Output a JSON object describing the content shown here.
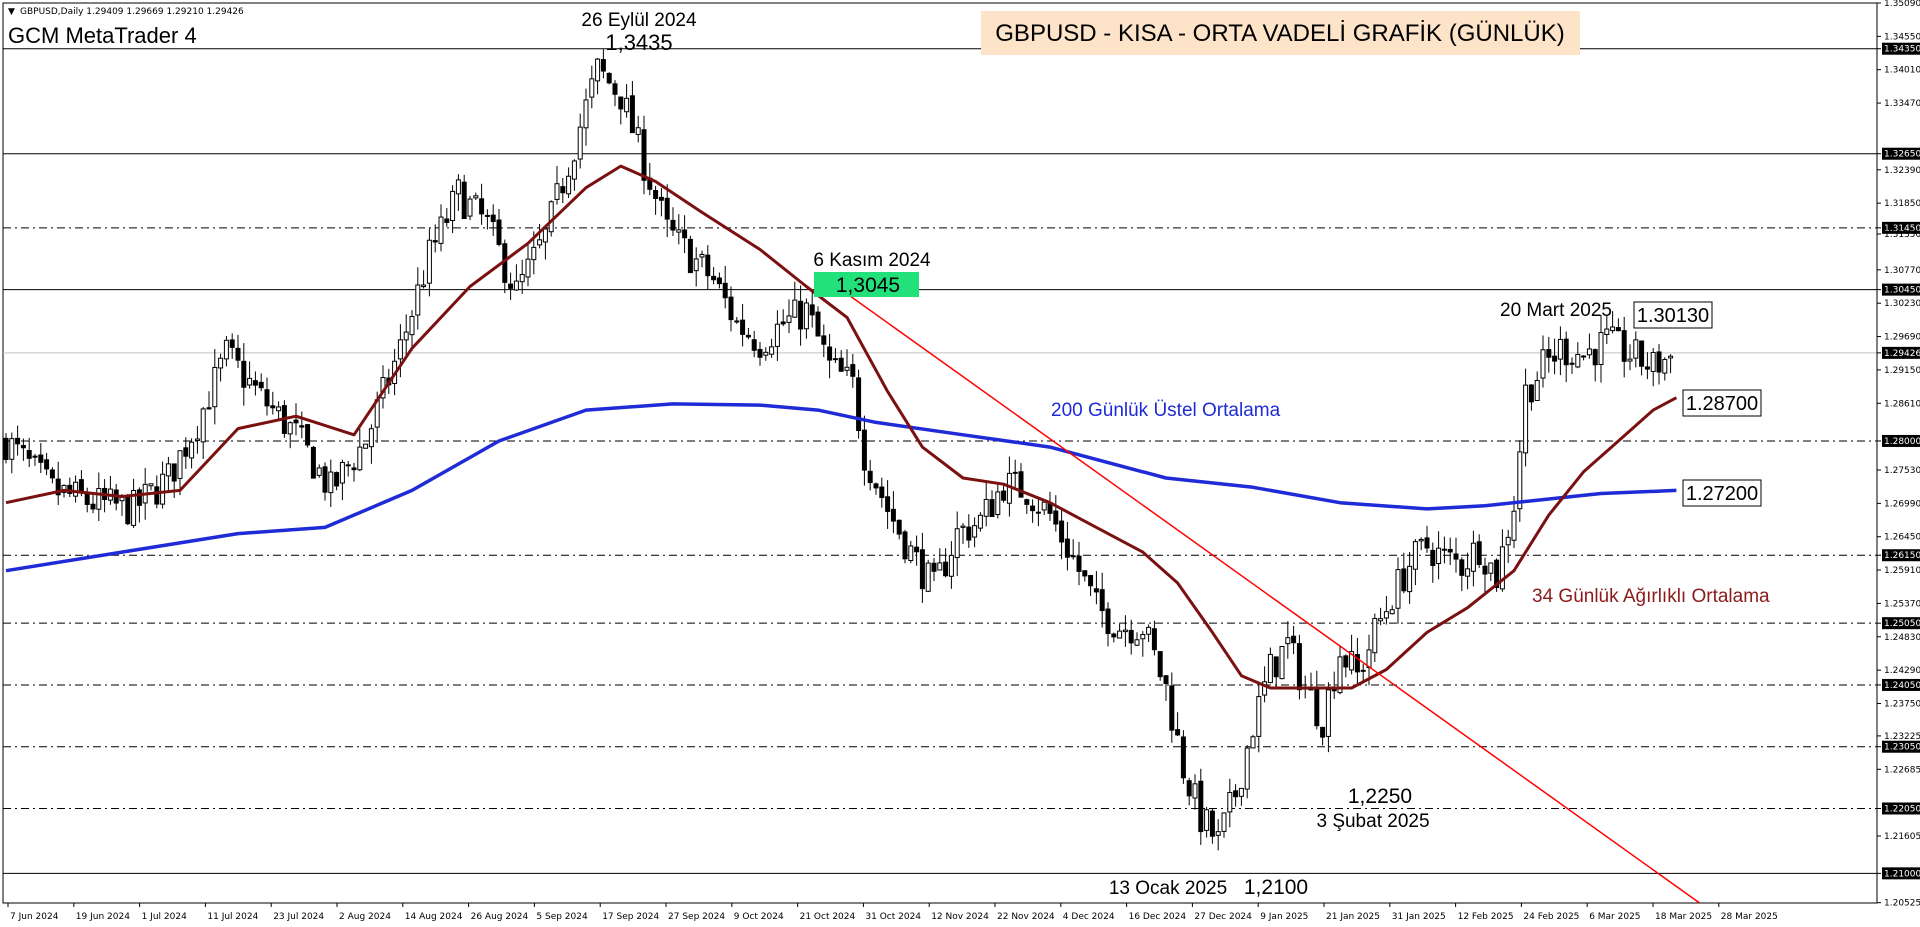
{
  "window": {
    "symbol_line": "GBPUSD,Daily  1.29409 1.29669 1.29210 1.29426",
    "platform_label": "GCM MetaTrader 4",
    "title_banner": "GBPUSD - KISA - ORTA VADELİ GRAFİK (GÜNLÜK)"
  },
  "colors": {
    "candle": "#000000",
    "ema200": "#1f2bd6",
    "wma34": "#7b1010",
    "trendline": "#ff0000",
    "highlight": "#22e07a",
    "banner": "#fde3c8"
  },
  "annotations": {
    "peak_date": "26 Eylül 2024",
    "peak_value": "1,3435",
    "nov_date": "6 Kasım 2024",
    "nov_value": "1,3045",
    "mar_date": "20 Mart 2025",
    "mar_value": "1.30130",
    "wma_value": "1.28700",
    "ema_value": "1.27200",
    "ema_label": "200 Günlük Üstel Ortalama",
    "wma_label": "34 Günlük Ağırlıklı Ortalama",
    "feb_value": "1,2250",
    "feb_date": "3 Şubat 2025",
    "jan_date": "13 Ocak 2025",
    "jan_value": "1,2100"
  },
  "chart_data": {
    "type": "candlestick",
    "ylim": [
      1.2052,
      1.3509
    ],
    "y_ticks": [
      "1.35090",
      "1.34550",
      "1.34350",
      "1.34010",
      "1.33470",
      "1.32650",
      "1.32390",
      "1.31850",
      "1.31450",
      "1.31350",
      "1.30770",
      "1.30450",
      "1.30230",
      "1.29690",
      "1.29426",
      "1.29150",
      "1.28610",
      "1.28000",
      "1.27530",
      "1.26990",
      "1.26450",
      "1.26150",
      "1.25910",
      "1.25370",
      "1.25050",
      "1.24830",
      "1.24290",
      "1.24050",
      "1.23750",
      "1.23225",
      "1.23050",
      "1.22685",
      "1.22050",
      "1.21605",
      "1.21000",
      "1.20525"
    ],
    "x_ticks": [
      "7 Jun 2024",
      "19 Jun 2024",
      "1 Jul 2024",
      "11 Jul 2024",
      "23 Jul 2024",
      "2 Aug 2024",
      "14 Aug 2024",
      "26 Aug 2024",
      "5 Sep 2024",
      "17 Sep 2024",
      "27 Sep 2024",
      "9 Oct 2024",
      "21 Oct 2024",
      "31 Oct 2024",
      "12 Nov 2024",
      "22 Nov 2024",
      "4 Dec 2024",
      "16 Dec 2024",
      "27 Dec 2024",
      "9 Jan 2025",
      "21 Jan 2025",
      "31 Jan 2025",
      "12 Feb 2025",
      "24 Feb 2025",
      "6 Mar 2025",
      "18 Mar 2025",
      "28 Mar 2025"
    ],
    "solid_levels": [
      1.3435,
      1.3265,
      1.3045,
      1.21
    ],
    "dashed_levels": [
      1.3145,
      1.28,
      1.2615,
      1.2505,
      1.2405,
      1.2305,
      1.2205
    ],
    "current_price": 1.29426,
    "close_path": [
      [
        0,
        1.28
      ],
      [
        8,
        1.272
      ],
      [
        15,
        1.27
      ],
      [
        22,
        1.269
      ],
      [
        28,
        1.274
      ],
      [
        33,
        1.283
      ],
      [
        38,
        1.294
      ],
      [
        44,
        1.287
      ],
      [
        50,
        1.281
      ],
      [
        56,
        1.272
      ],
      [
        62,
        1.28
      ],
      [
        68,
        1.295
      ],
      [
        73,
        1.31
      ],
      [
        78,
        1.32
      ],
      [
        83,
        1.315
      ],
      [
        88,
        1.304
      ],
      [
        93,
        1.313
      ],
      [
        98,
        1.328
      ],
      [
        102,
        1.34
      ],
      [
        106,
        1.336
      ],
      [
        110,
        1.325
      ],
      [
        114,
        1.314
      ],
      [
        118,
        1.31
      ],
      [
        122,
        1.306
      ],
      [
        126,
        1.299
      ],
      [
        130,
        1.296
      ],
      [
        134,
        1.299
      ],
      [
        138,
        1.301
      ],
      [
        142,
        1.292
      ],
      [
        146,
        1.289
      ],
      [
        148,
        1.278
      ],
      [
        152,
        1.269
      ],
      [
        156,
        1.262
      ],
      [
        160,
        1.256
      ],
      [
        164,
        1.265
      ],
      [
        168,
        1.267
      ],
      [
        172,
        1.273
      ],
      [
        176,
        1.272
      ],
      [
        180,
        1.268
      ],
      [
        184,
        1.261
      ],
      [
        188,
        1.253
      ],
      [
        192,
        1.25
      ],
      [
        196,
        1.25
      ],
      [
        200,
        1.24
      ],
      [
        203,
        1.227
      ],
      [
        206,
        1.219
      ],
      [
        209,
        1.215
      ],
      [
        212,
        1.223
      ],
      [
        215,
        1.234
      ],
      [
        218,
        1.243
      ],
      [
        221,
        1.247
      ],
      [
        224,
        1.24
      ],
      [
        227,
        1.235
      ],
      [
        230,
        1.246
      ],
      [
        233,
        1.242
      ],
      [
        236,
        1.249
      ],
      [
        239,
        1.255
      ],
      [
        242,
        1.26
      ],
      [
        245,
        1.263
      ],
      [
        248,
        1.261
      ],
      [
        251,
        1.26
      ],
      [
        254,
        1.263
      ],
      [
        257,
        1.258
      ],
      [
        260,
        1.27
      ],
      [
        262,
        1.288
      ],
      [
        265,
        1.292
      ],
      [
        268,
        1.295
      ],
      [
        272,
        1.294
      ],
      [
        276,
        1.296
      ],
      [
        280,
        1.294
      ],
      [
        284,
        1.292
      ],
      [
        288,
        1.2943
      ]
    ],
    "ema200": [
      [
        0,
        1.259
      ],
      [
        20,
        1.262
      ],
      [
        40,
        1.265
      ],
      [
        55,
        1.266
      ],
      [
        70,
        1.272
      ],
      [
        85,
        1.28
      ],
      [
        100,
        1.285
      ],
      [
        115,
        1.286
      ],
      [
        130,
        1.2858
      ],
      [
        140,
        1.285
      ],
      [
        150,
        1.283
      ],
      [
        165,
        1.281
      ],
      [
        180,
        1.279
      ],
      [
        200,
        1.274
      ],
      [
        215,
        1.2725
      ],
      [
        230,
        1.27
      ],
      [
        245,
        1.269
      ],
      [
        255,
        1.2695
      ],
      [
        265,
        1.2705
      ],
      [
        275,
        1.2715
      ],
      [
        288,
        1.272
      ]
    ],
    "wma34": [
      [
        0,
        1.27
      ],
      [
        10,
        1.272
      ],
      [
        20,
        1.271
      ],
      [
        30,
        1.272
      ],
      [
        40,
        1.282
      ],
      [
        50,
        1.284
      ],
      [
        60,
        1.281
      ],
      [
        70,
        1.295
      ],
      [
        80,
        1.305
      ],
      [
        90,
        1.312
      ],
      [
        100,
        1.321
      ],
      [
        106,
        1.3245
      ],
      [
        112,
        1.322
      ],
      [
        120,
        1.317
      ],
      [
        130,
        1.311
      ],
      [
        138,
        1.305
      ],
      [
        145,
        1.3
      ],
      [
        152,
        1.288
      ],
      [
        158,
        1.279
      ],
      [
        165,
        1.274
      ],
      [
        172,
        1.273
      ],
      [
        180,
        1.27
      ],
      [
        188,
        1.266
      ],
      [
        196,
        1.262
      ],
      [
        202,
        1.257
      ],
      [
        208,
        1.249
      ],
      [
        213,
        1.242
      ],
      [
        218,
        1.24
      ],
      [
        225,
        1.24
      ],
      [
        232,
        1.24
      ],
      [
        238,
        1.243
      ],
      [
        245,
        1.249
      ],
      [
        252,
        1.253
      ],
      [
        260,
        1.259
      ],
      [
        266,
        1.268
      ],
      [
        272,
        1.275
      ],
      [
        278,
        1.28
      ],
      [
        284,
        1.285
      ],
      [
        288,
        1.287
      ]
    ],
    "trendline": [
      [
        1.3045,
        144
      ],
      [
        1.2052,
        292
      ]
    ],
    "n_bars": 288
  }
}
